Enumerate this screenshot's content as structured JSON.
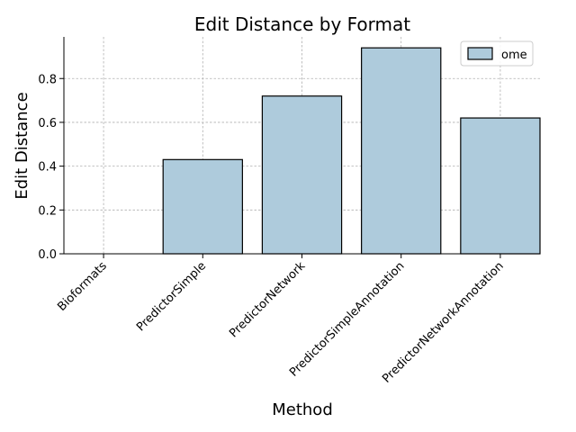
{
  "chart_data": {
    "type": "bar",
    "title": "Edit Distance by Format",
    "xlabel": "Method",
    "ylabel": "Edit Distance",
    "categories": [
      "Bioformats",
      "PredictorSimple",
      "PredictorNetwork",
      "PredictorSimpleAnnotation",
      "PredictorNetworkAnnotation"
    ],
    "series": [
      {
        "name": "ome",
        "values": [
          0.0,
          0.43,
          0.72,
          0.94,
          0.62
        ]
      }
    ],
    "ylim": [
      0,
      0.99
    ],
    "yticks": [
      0.0,
      0.2,
      0.4,
      0.6,
      0.8
    ],
    "ytick_labels": [
      "0.0",
      "0.2",
      "0.4",
      "0.6",
      "0.8"
    ],
    "grid": true,
    "legend_position": "top-right",
    "colors": {
      "bar_fill": "#aecbdc",
      "bar_edge": "#000000"
    }
  }
}
